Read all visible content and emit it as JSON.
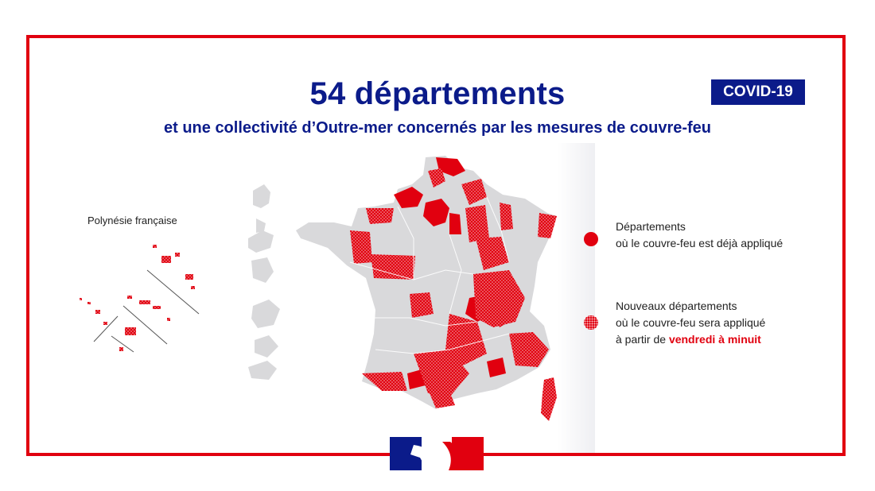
{
  "title": "54 départements",
  "subtitle": "et une collectivité d’Outre-mer concernés par les mesures de couvre-feu",
  "badge": "COVID-19",
  "polynesia_label": "Polynésie française",
  "legend": {
    "applied": {
      "line1": "Départements",
      "line2": "où le couvre-feu est déjà appliqué"
    },
    "new": {
      "line1": "Nouveaux départements",
      "line2": "où le couvre-feu sera appliqué",
      "line3_prefix": "à partir de ",
      "line3_highlight": "vendredi à minuit"
    }
  },
  "colors": {
    "red": "#e1000f",
    "navy": "#0b1b8a",
    "grey_land": "#d9d9db"
  },
  "icons": [
    "republique-francaise-logo-icon"
  ]
}
